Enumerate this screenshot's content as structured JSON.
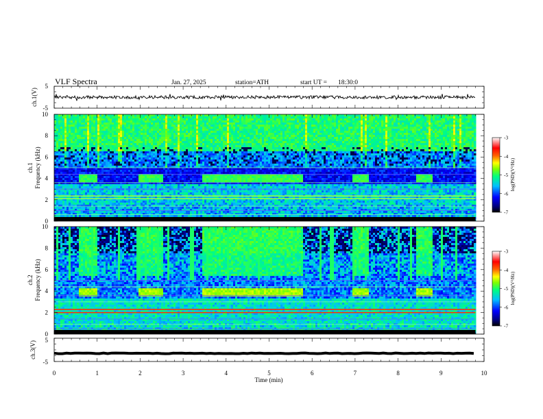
{
  "header": {
    "title": "VLF  Spectra",
    "date": "Jan. 27, 2025",
    "station": "station=ATH",
    "start_label": "start  UT  =",
    "start_time": "18:30:0"
  },
  "colors": {
    "trace": "#000000",
    "colormap": [
      "#000000",
      "#00007f",
      "#0000ff",
      "#00bfff",
      "#00ff80",
      "#80ff00",
      "#ffff00",
      "#ff6000",
      "#ff0000",
      "#ffffff"
    ]
  },
  "chart_data": [
    {
      "type": "line",
      "panel": "ch1-voltage",
      "ylabel": "ch.1(V)",
      "ylim": [
        -5,
        5
      ],
      "y_ticks": [
        "5",
        "-5"
      ],
      "xlim": [
        0,
        10
      ],
      "trace_mean": 0,
      "trace_noise_amplitude": 0.7,
      "trace_end_min": 9.8
    },
    {
      "type": "heatmap",
      "panel": "ch1-spectrogram",
      "ylabel_channel": "ch.1",
      "ylabel": "Frequency  (kHz)",
      "ylim": [
        0,
        10
      ],
      "y_ticks": [
        "0",
        "2",
        "4",
        "6",
        "8",
        "10"
      ],
      "xlim": [
        0,
        10
      ],
      "data_end_min": 9.8,
      "colorbar_label": "log(PSD)(V²/Hz)",
      "colorbar_range": [
        -7,
        -3
      ],
      "colorbar_ticks": [
        "-7",
        "-6",
        "-5",
        "-4",
        "-3"
      ],
      "tone_bursts_min": [
        [
          0.55,
          1.0
        ],
        [
          1.95,
          2.5
        ],
        [
          3.4,
          5.75
        ],
        [
          6.9,
          7.3
        ],
        [
          8.4,
          8.8
        ]
      ],
      "tone_band_khz": [
        3.6,
        4.4
      ],
      "lines_khz": [
        0.3,
        0.6,
        1.0,
        1.4,
        2.1,
        2.35,
        3.0,
        3.6,
        4.4,
        5.0
      ]
    },
    {
      "type": "heatmap",
      "panel": "ch2-spectrogram",
      "ylabel_channel": "ch.2",
      "ylabel": "Frequency  (kHz)",
      "ylim": [
        0,
        10
      ],
      "y_ticks": [
        "0",
        "2",
        "4",
        "6",
        "8",
        "10"
      ],
      "xlim": [
        0,
        10
      ],
      "data_end_min": 9.8,
      "colorbar_label": "log(PSD)(V²/Hz)",
      "colorbar_range": [
        -7,
        -3
      ],
      "colorbar_ticks": [
        "-7",
        "-6",
        "-5",
        "-4",
        "-3"
      ],
      "tone_bursts_min": [
        [
          0.55,
          1.0
        ],
        [
          1.95,
          2.5
        ],
        [
          3.4,
          5.75
        ],
        [
          6.9,
          7.3
        ],
        [
          8.4,
          8.8
        ]
      ],
      "tone_band_khz": [
        3.6,
        4.4
      ],
      "lines_khz": [
        0.5,
        0.9,
        1.4,
        2.0,
        2.3,
        3.0,
        3.6,
        4.4,
        5.0
      ]
    },
    {
      "type": "line",
      "panel": "ch3-voltage",
      "ylabel": "ch.3(V)",
      "ylim": [
        -5,
        5
      ],
      "y_ticks": [
        "5",
        "-5"
      ],
      "xlim": [
        0,
        10
      ],
      "trace_mean": -1.5,
      "trace_noise_amplitude": 0.15,
      "trace_end_min": 9.8
    }
  ],
  "xaxis": {
    "label": "Time  (min)",
    "ticks": [
      "0",
      "1",
      "2",
      "3",
      "4",
      "5",
      "6",
      "7",
      "8",
      "9",
      "10"
    ]
  }
}
